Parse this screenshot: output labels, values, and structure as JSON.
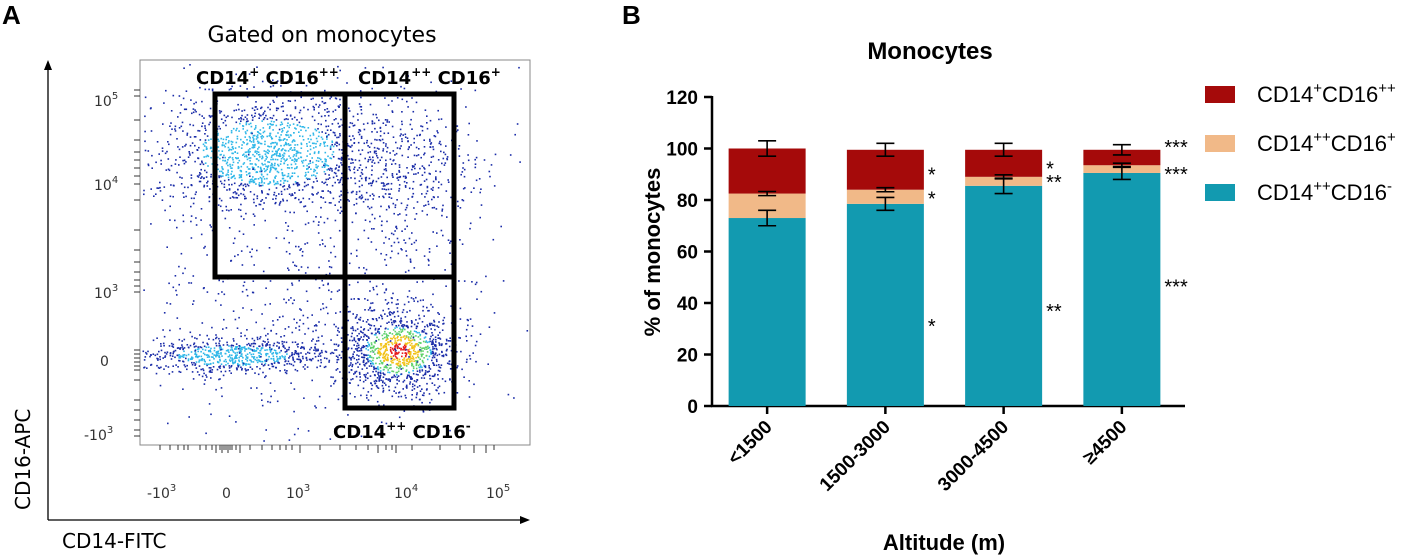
{
  "panel_a": {
    "letter": "A",
    "title": "Gated on monocytes",
    "x_axis_title": "CD14-FITC",
    "y_axis_title": "CD16-APC",
    "x_ticks": [
      "-10",
      "0",
      "10",
      "10",
      "10"
    ],
    "x_tick_exps": [
      "3",
      "",
      "3",
      "4",
      "5"
    ],
    "y_ticks": [
      "10",
      "10",
      "10",
      "0",
      "-10"
    ],
    "y_tick_exps": [
      "5",
      "4",
      "3",
      "",
      "3"
    ],
    "gates": [
      {
        "name": "gate-top-left",
        "base1": "CD14",
        "sup1": "+",
        "base2": " CD16",
        "sup2": "++"
      },
      {
        "name": "gate-top-right",
        "base1": "CD14",
        "sup1": "++",
        "base2": " CD16",
        "sup2": "+"
      },
      {
        "name": "gate-bottom-right",
        "base1": "CD14",
        "sup1": "++",
        "base2": " CD16",
        "sup2": "-"
      }
    ],
    "colors": {
      "low": "#1a2ca8",
      "mid": "#2fb7e8",
      "high": "#e81c1c",
      "gate": "#000000"
    }
  },
  "chart_data": {
    "panel_letter": "B",
    "type": "bar",
    "stacked": true,
    "title": "Monocytes",
    "xlabel": "Altitude (m)",
    "ylabel": "% of monocytes",
    "ylim": [
      0,
      120
    ],
    "yticks": [
      0,
      20,
      40,
      60,
      80,
      100,
      120
    ],
    "categories": [
      "<1500",
      "1500-3000",
      "3000-4500",
      "≥4500"
    ],
    "series": [
      {
        "name": "CD14++CD16-",
        "label_base1": "CD14",
        "label_sup1": "++",
        "label_base2": "CD16",
        "label_sup2": "-",
        "color": "#129ab0",
        "values": [
          73,
          78.5,
          85.5,
          90.5
        ],
        "errors": [
          3,
          2.5,
          3,
          2.5
        ],
        "significance": [
          "*",
          "**",
          "***"
        ]
      },
      {
        "name": "CD14++CD16+",
        "label_base1": "CD14",
        "label_sup1": "++",
        "label_base2": "CD16",
        "label_sup2": "+",
        "color": "#f1b988",
        "values": [
          9.5,
          5.5,
          3.5,
          3
        ],
        "errors": [
          0.8,
          0.8,
          0.8,
          0.8
        ],
        "significance": [
          "*",
          "**",
          "***"
        ]
      },
      {
        "name": "CD14+CD16++",
        "label_base1": "CD14",
        "label_sup1": "+",
        "label_base2": "CD16",
        "label_sup2": "++",
        "color": "#a50a0a",
        "values": [
          17.5,
          15.5,
          10.5,
          6
        ],
        "errors": [
          3,
          2.5,
          2.5,
          2
        ],
        "significance": [
          "*",
          "*",
          "***"
        ]
      }
    ],
    "legend_order": [
      2,
      1,
      0
    ],
    "legend_position": "right"
  }
}
